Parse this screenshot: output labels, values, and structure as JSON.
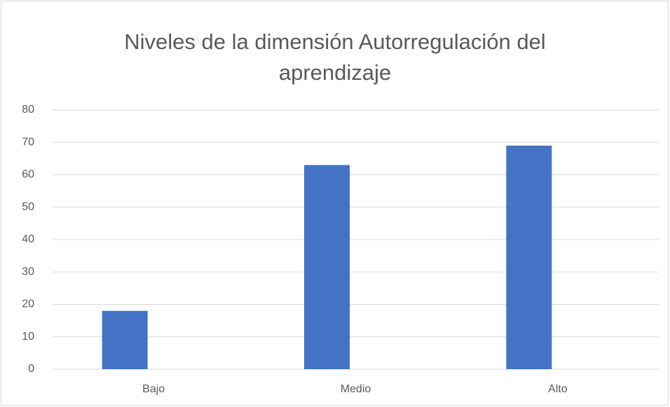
{
  "chart_data": {
    "type": "bar",
    "title": "Niveles de la dimensión Autorregulación del aprendizaje",
    "categories": [
      "Bajo",
      "Medio",
      "Alto"
    ],
    "values": [
      18,
      63,
      69
    ],
    "color": "#4472c4",
    "ylim": [
      0,
      80
    ],
    "yticks": [
      0,
      10,
      20,
      30,
      40,
      50,
      60,
      70,
      80
    ],
    "grid": true
  }
}
